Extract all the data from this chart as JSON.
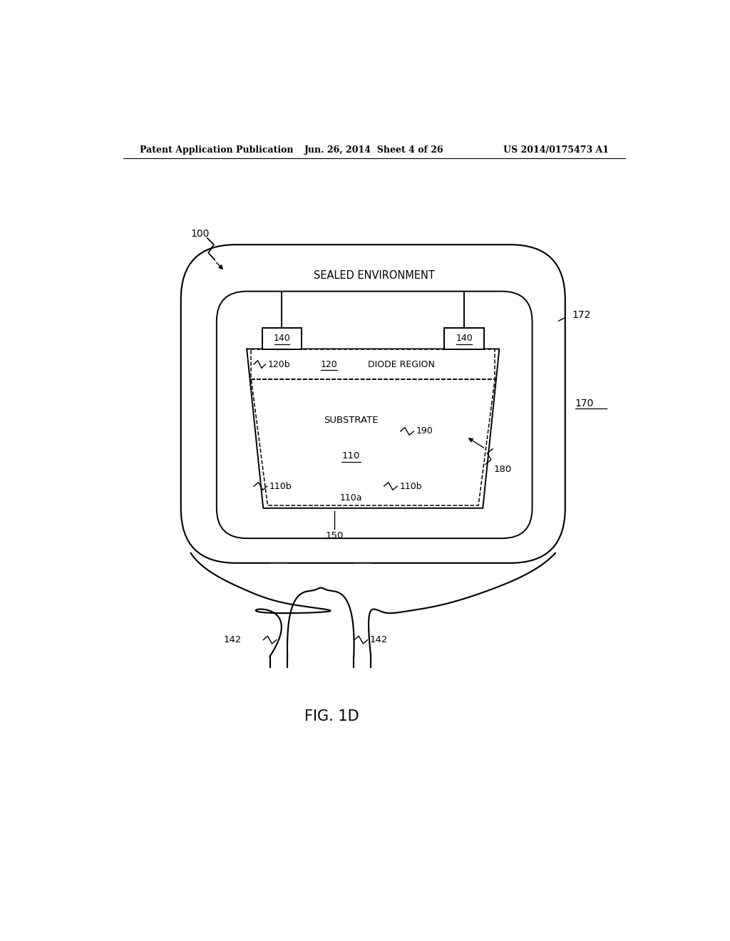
{
  "background_color": "#ffffff",
  "header_left": "Patent Application Publication",
  "header_center": "Jun. 26, 2014  Sheet 4 of 26",
  "header_right": "US 2014/0175473 A1",
  "figure_label": "FIG. 1D",
  "line_color": "#000000",
  "lw": 1.4
}
